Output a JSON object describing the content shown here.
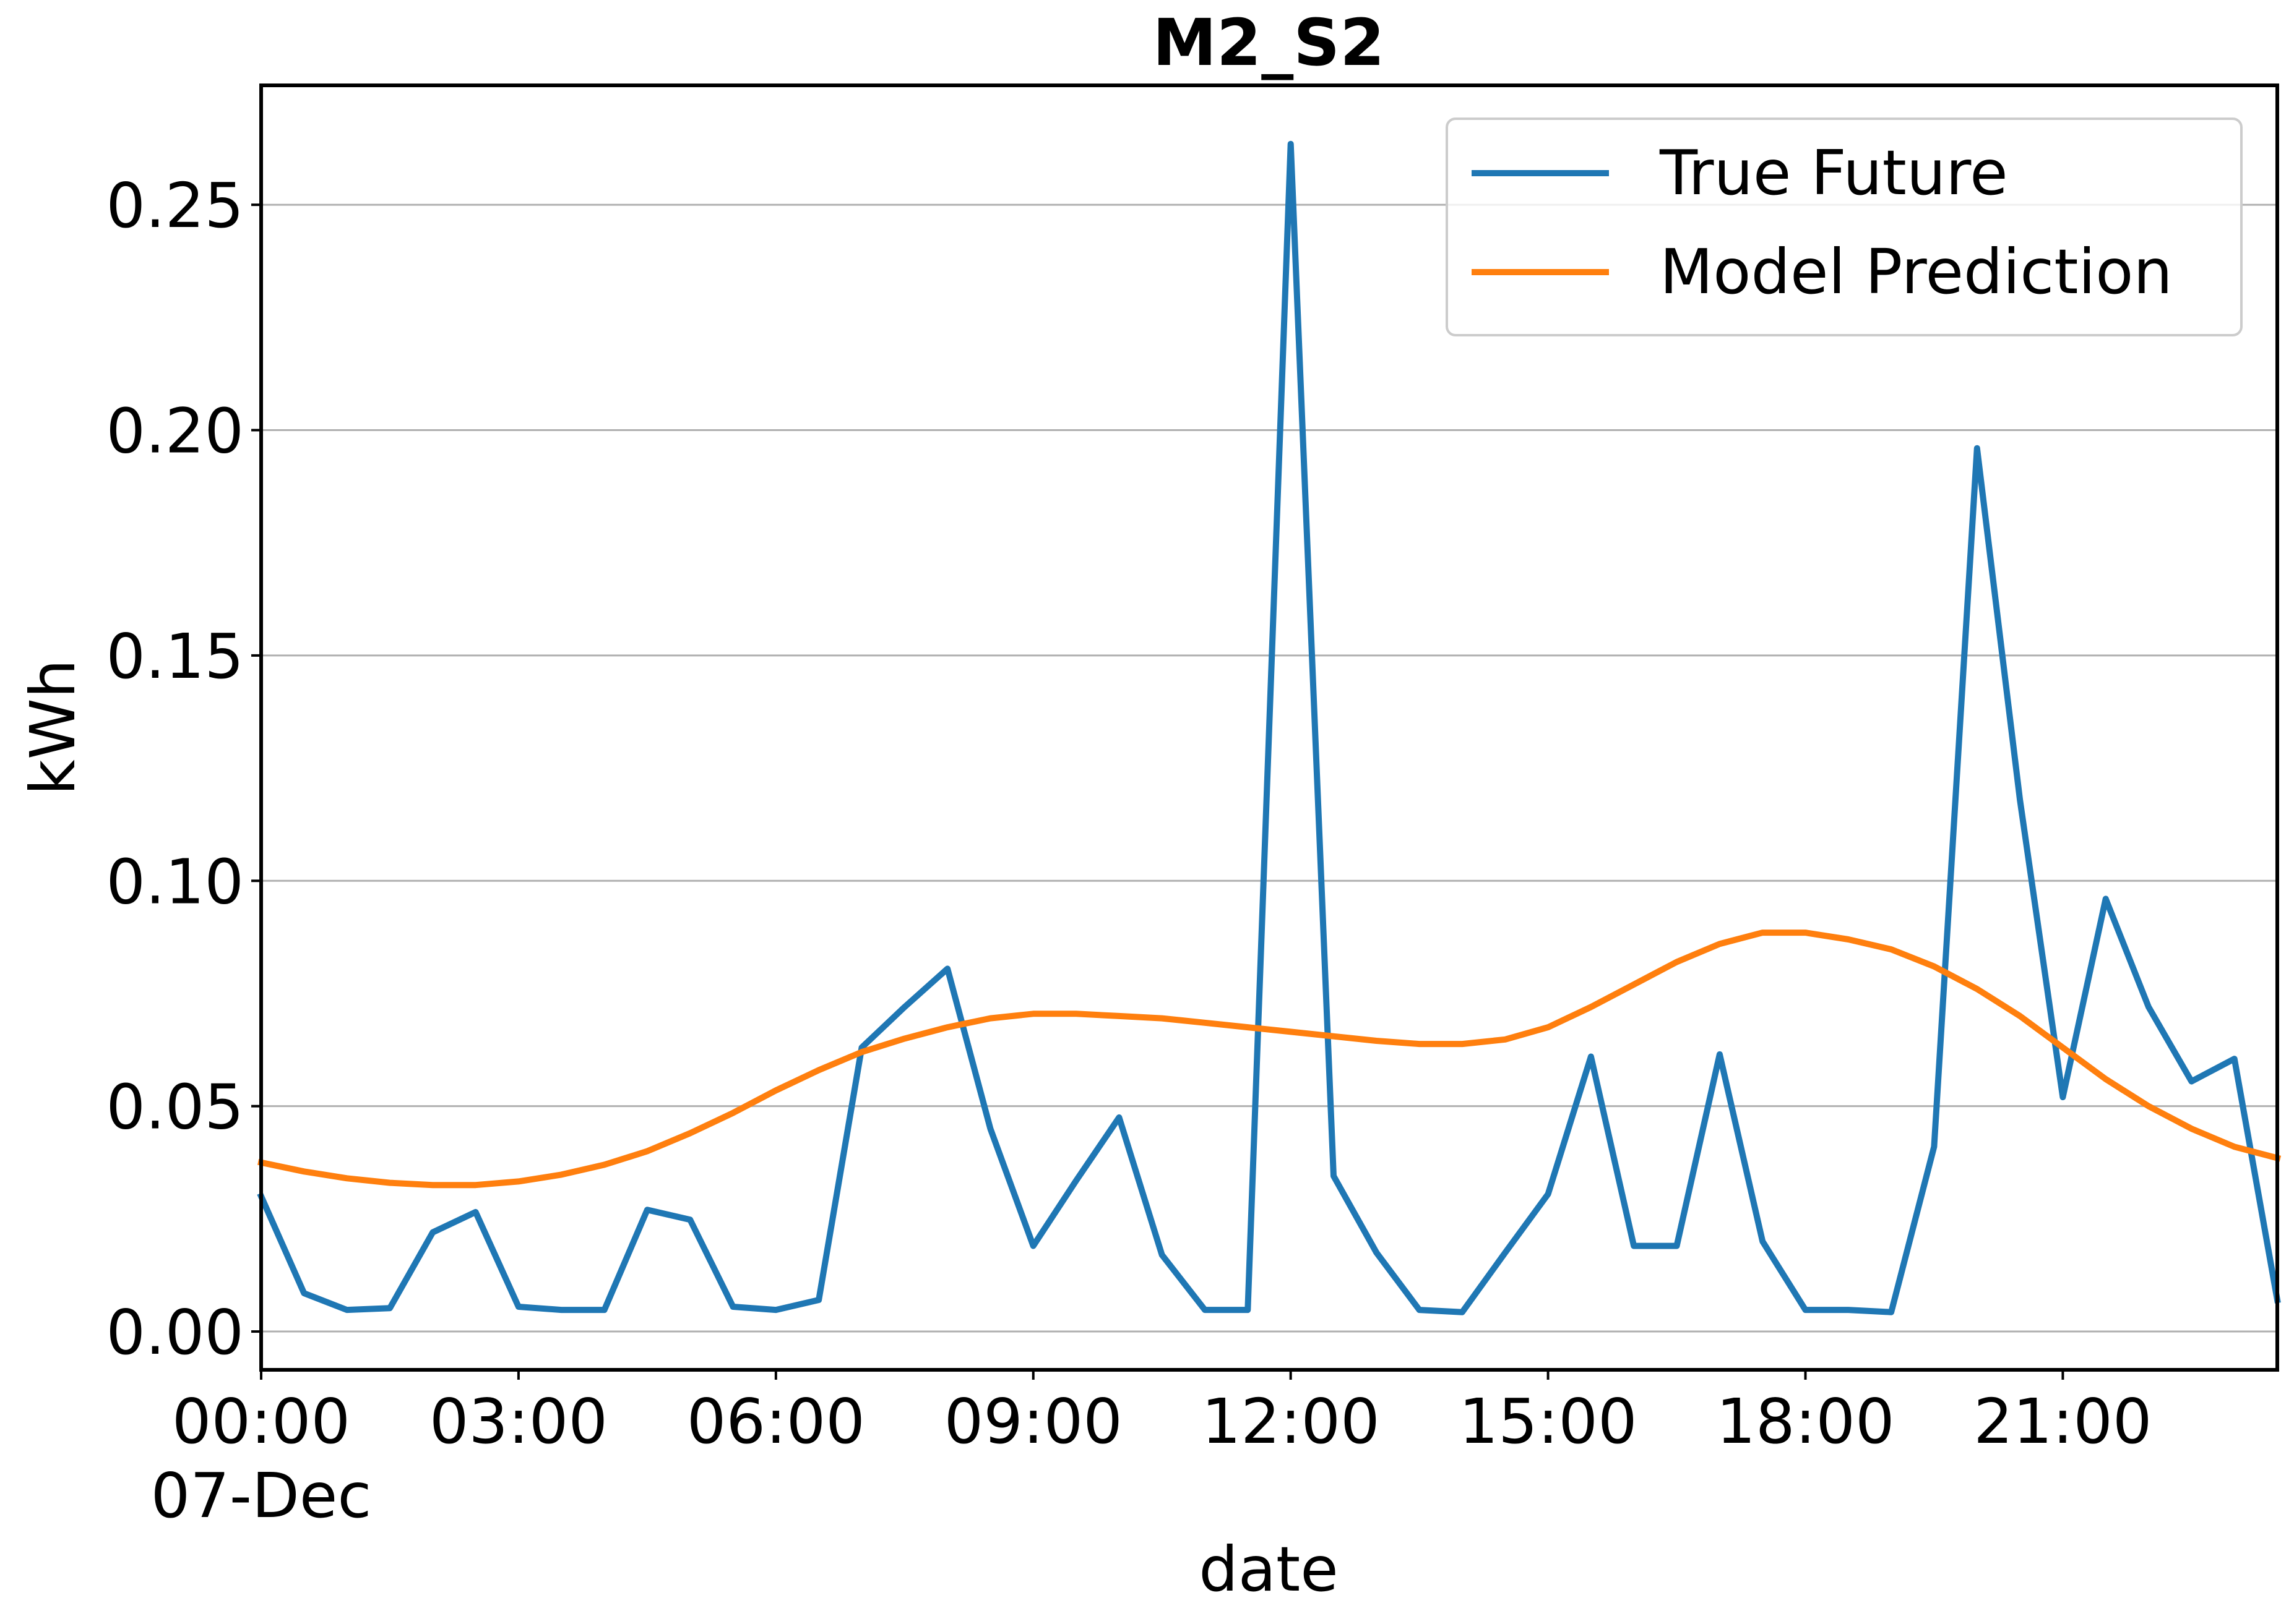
{
  "chart_data": {
    "type": "line",
    "title": "M2_S2",
    "xlabel": "date",
    "ylabel": "kWh",
    "xlim": [
      "00:00",
      "23:30"
    ],
    "ylim": [
      -0.0085,
      0.2765
    ],
    "grid": "horizontal",
    "legend_position": "top-right",
    "x_ticks": [
      {
        "label": "00:00",
        "sublabel": "07-Dec"
      },
      {
        "label": "03:00"
      },
      {
        "label": "06:00"
      },
      {
        "label": "09:00"
      },
      {
        "label": "12:00"
      },
      {
        "label": "15:00"
      },
      {
        "label": "18:00"
      },
      {
        "label": "21:00"
      }
    ],
    "y_ticks": [
      "0.00",
      "0.05",
      "0.10",
      "0.15",
      "0.20",
      "0.25"
    ],
    "x": [
      "00:00",
      "00:30",
      "01:00",
      "01:30",
      "02:00",
      "02:30",
      "03:00",
      "03:30",
      "04:00",
      "04:30",
      "05:00",
      "05:30",
      "06:00",
      "06:30",
      "07:00",
      "07:30",
      "08:00",
      "08:30",
      "09:00",
      "09:30",
      "10:00",
      "10:30",
      "11:00",
      "11:30",
      "12:00",
      "12:30",
      "13:00",
      "13:30",
      "14:00",
      "14:30",
      "15:00",
      "15:30",
      "16:00",
      "16:30",
      "17:00",
      "17:30",
      "18:00",
      "18:30",
      "19:00",
      "19:30",
      "20:00",
      "20:30",
      "21:00",
      "21:30",
      "22:00",
      "22:30",
      "23:00",
      "23:30"
    ],
    "series": [
      {
        "name": "True Future",
        "color": "#1f77b4",
        "values": [
          0.03,
          0.0085,
          0.0048,
          0.0052,
          0.022,
          0.0265,
          0.0055,
          0.0048,
          0.0048,
          0.027,
          0.0248,
          0.0055,
          0.0048,
          0.007,
          0.063,
          0.072,
          0.0805,
          0.045,
          0.019,
          0.0335,
          0.0475,
          0.017,
          0.0048,
          0.0048,
          0.2635,
          0.0345,
          0.0175,
          0.0048,
          0.0043,
          0.0175,
          0.0305,
          0.061,
          0.019,
          0.019,
          0.0615,
          0.02,
          0.0048,
          0.0048,
          0.0043,
          0.041,
          0.196,
          0.118,
          0.052,
          0.096,
          0.072,
          0.0555,
          0.0605,
          0.007
        ]
      },
      {
        "name": "Model Prediction",
        "color": "#ff7f0e",
        "values": [
          0.0375,
          0.0355,
          0.034,
          0.033,
          0.0325,
          0.0325,
          0.0333,
          0.0348,
          0.037,
          0.04,
          0.044,
          0.0485,
          0.0535,
          0.058,
          0.062,
          0.065,
          0.0675,
          0.0695,
          0.0705,
          0.0705,
          0.07,
          0.0695,
          0.0685,
          0.0675,
          0.0665,
          0.0655,
          0.0645,
          0.0638,
          0.0638,
          0.0648,
          0.0675,
          0.072,
          0.077,
          0.082,
          0.086,
          0.0885,
          0.0885,
          0.087,
          0.0848,
          0.081,
          0.076,
          0.07,
          0.063,
          0.056,
          0.05,
          0.045,
          0.041,
          0.0385
        ]
      }
    ]
  }
}
